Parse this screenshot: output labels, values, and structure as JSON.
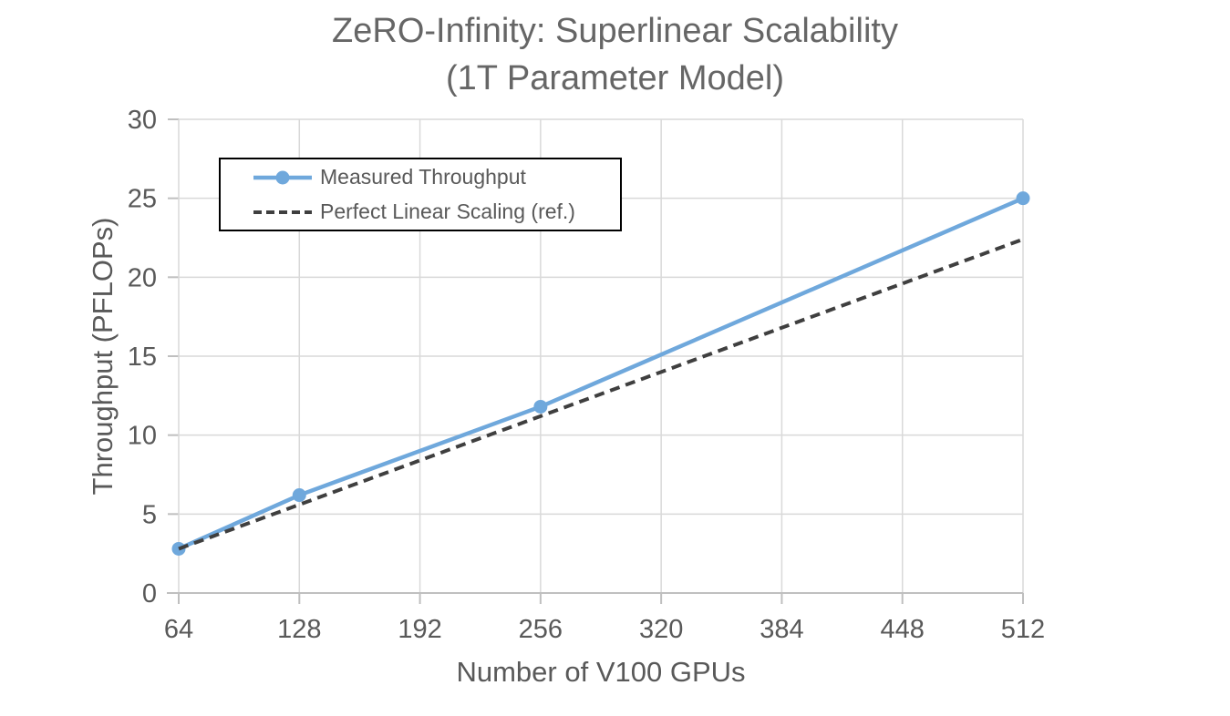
{
  "chart_data": {
    "type": "line",
    "title_line1": "ZeRO-Infinity: Superlinear Scalability",
    "title_line2": "(1T Parameter Model)",
    "xlabel": "Number of V100 GPUs",
    "ylabel": "Throughput (PFLOPs)",
    "xlim": [
      64,
      512
    ],
    "ylim": [
      0,
      30
    ],
    "x_ticks": [
      64,
      128,
      192,
      256,
      320,
      384,
      448,
      512
    ],
    "y_ticks": [
      0,
      5,
      10,
      15,
      20,
      25,
      30
    ],
    "grid": true,
    "legend_position": "inside-top-left",
    "series": [
      {
        "name": "Measured Throughput",
        "style": "solid-with-markers",
        "color": "#6FA8DC",
        "x": [
          64,
          128,
          256,
          512
        ],
        "values": [
          2.8,
          6.2,
          11.8,
          25.0
        ]
      },
      {
        "name": "Perfect Linear Scaling (ref.)",
        "style": "dashed",
        "color": "#3F3F3F",
        "x": [
          64,
          128,
          192,
          256,
          320,
          384,
          448,
          512
        ],
        "values": [
          2.8,
          5.6,
          8.4,
          11.2,
          14.0,
          16.8,
          19.6,
          22.4
        ]
      }
    ],
    "colors": {
      "gridline": "#D9D9D9",
      "axis_line": "#BFBFBF",
      "tick": "#BFBFBF",
      "text": "#595959",
      "title_text": "#666666",
      "legend_border": "#000000",
      "background": "#FFFFFF"
    }
  }
}
